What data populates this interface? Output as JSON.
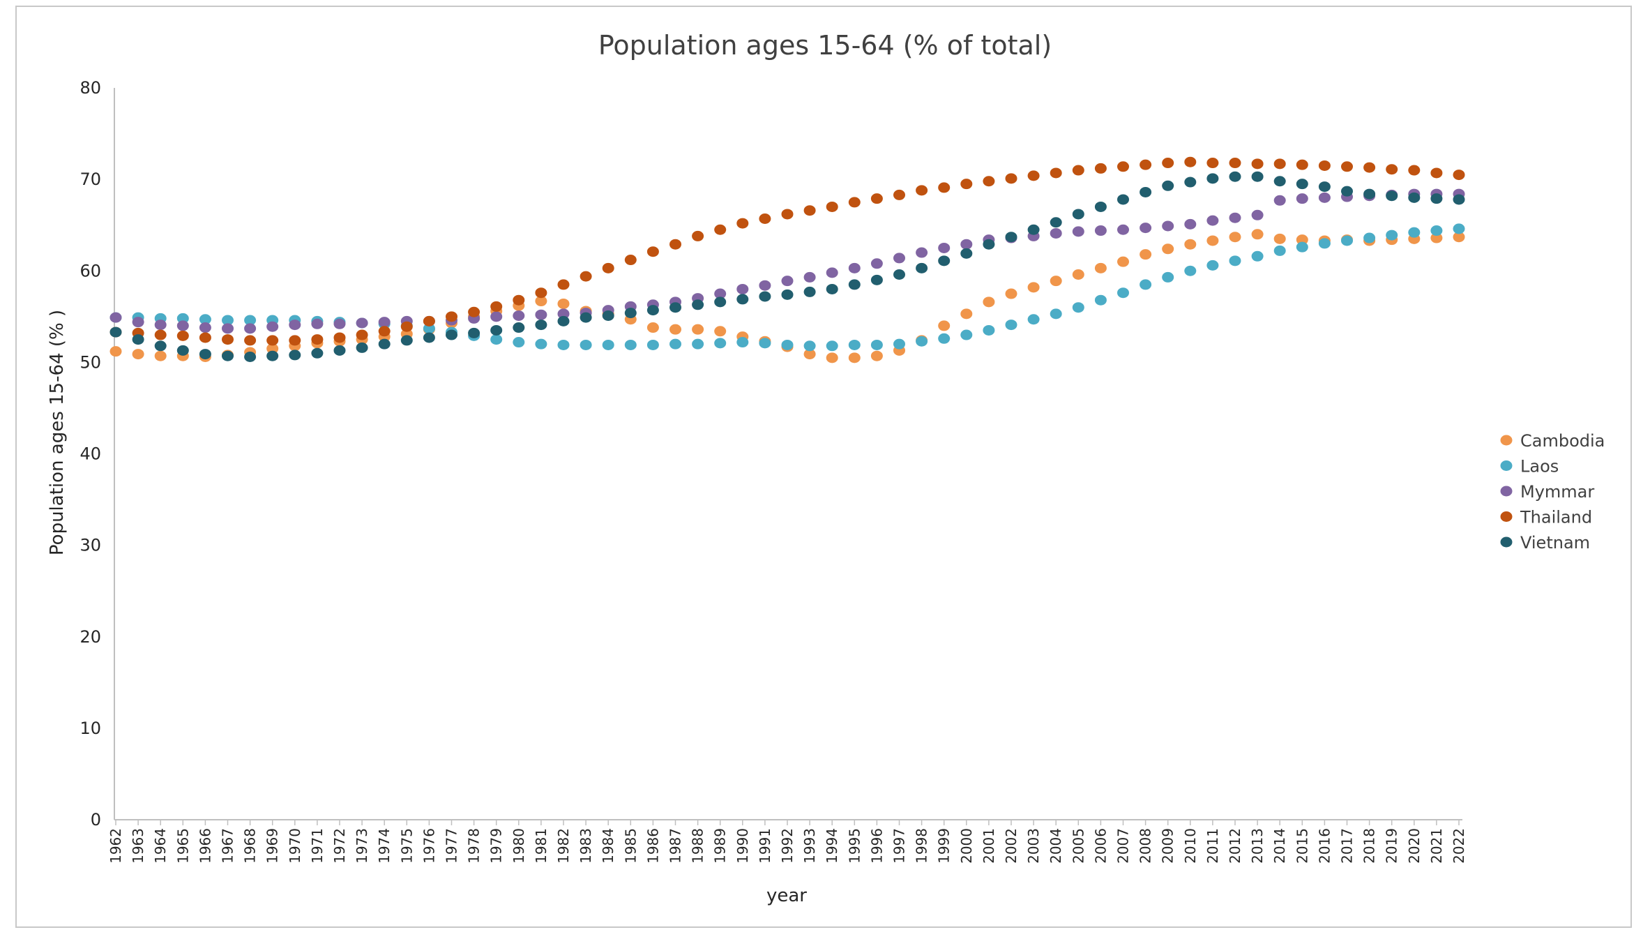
{
  "chart_data": {
    "type": "scatter",
    "title": "Population ages 15-64 (% of total)",
    "xlabel": "year",
    "ylabel": "Population ages 15-64 (% )",
    "ylim": [
      0,
      80
    ],
    "yticks": [
      0,
      10,
      20,
      30,
      40,
      50,
      60,
      70,
      80
    ],
    "grid": false,
    "legend_position": "right",
    "x": [
      1962,
      1963,
      1964,
      1965,
      1966,
      1967,
      1968,
      1969,
      1970,
      1971,
      1972,
      1973,
      1974,
      1975,
      1976,
      1977,
      1978,
      1979,
      1980,
      1981,
      1982,
      1983,
      1984,
      1985,
      1986,
      1987,
      1988,
      1989,
      1990,
      1991,
      1992,
      1993,
      1994,
      1995,
      1996,
      1997,
      1998,
      1999,
      2000,
      2001,
      2002,
      2003,
      2004,
      2005,
      2006,
      2007,
      2008,
      2009,
      2010,
      2011,
      2012,
      2013,
      2014,
      2015,
      2016,
      2017,
      2018,
      2019,
      2020,
      2021,
      2022
    ],
    "series": [
      {
        "name": "Cambodia",
        "color": "#F0954A",
        "values": [
          51.2,
          50.9,
          50.7,
          50.7,
          50.6,
          50.8,
          51.1,
          51.5,
          51.8,
          52.1,
          52.3,
          52.5,
          52.8,
          53.1,
          53.6,
          54.3,
          55.0,
          55.6,
          56.2,
          56.7,
          56.4,
          55.6,
          55.3,
          54.7,
          53.8,
          53.6,
          53.6,
          53.4,
          52.8,
          52.3,
          51.7,
          50.9,
          50.5,
          50.5,
          50.7,
          51.3,
          52.4,
          54.0,
          55.3,
          56.6,
          57.5,
          58.2,
          58.9,
          59.6,
          60.3,
          61.0,
          61.8,
          62.4,
          62.9,
          63.3,
          63.7,
          64.0,
          63.5,
          63.4,
          63.3,
          63.4,
          63.3,
          63.4,
          63.5,
          63.6,
          63.7
        ]
      },
      {
        "name": "Laos",
        "color": "#4BACC6",
        "values": [
          54.9,
          54.9,
          54.8,
          54.8,
          54.7,
          54.6,
          54.6,
          54.6,
          54.6,
          54.5,
          54.4,
          54.3,
          54.2,
          54.0,
          53.7,
          53.3,
          52.9,
          52.5,
          52.2,
          52.0,
          51.9,
          51.9,
          51.9,
          51.9,
          51.9,
          52.0,
          52.0,
          52.1,
          52.2,
          52.1,
          51.9,
          51.8,
          51.8,
          51.9,
          51.9,
          52.0,
          52.3,
          52.6,
          53.0,
          53.5,
          54.1,
          54.7,
          55.3,
          56.0,
          56.8,
          57.6,
          58.5,
          59.3,
          60.0,
          60.6,
          61.1,
          61.6,
          62.2,
          62.6,
          63.0,
          63.3,
          63.6,
          63.9,
          64.2,
          64.4,
          64.6
        ]
      },
      {
        "name": "Mymmar",
        "color": "#8064A2",
        "values": [
          54.9,
          54.4,
          54.1,
          54.0,
          53.8,
          53.7,
          53.7,
          53.9,
          54.1,
          54.2,
          54.2,
          54.3,
          54.4,
          54.5,
          54.5,
          54.6,
          54.8,
          55.0,
          55.1,
          55.2,
          55.3,
          55.4,
          55.7,
          56.1,
          56.3,
          56.6,
          57.0,
          57.5,
          58.0,
          58.4,
          58.9,
          59.3,
          59.8,
          60.3,
          60.8,
          61.4,
          62.0,
          62.5,
          62.9,
          63.4,
          63.6,
          63.8,
          64.1,
          64.3,
          64.4,
          64.5,
          64.7,
          64.9,
          65.1,
          65.5,
          65.8,
          66.1,
          67.7,
          67.9,
          68.0,
          68.1,
          68.2,
          68.3,
          68.4,
          68.4,
          68.4
        ]
      },
      {
        "name": "Thailand",
        "color": "#C0520F",
        "values": [
          53.3,
          53.2,
          53.0,
          52.9,
          52.7,
          52.5,
          52.4,
          52.4,
          52.4,
          52.5,
          52.7,
          53.0,
          53.4,
          53.9,
          54.5,
          55.0,
          55.5,
          56.1,
          56.8,
          57.6,
          58.5,
          59.4,
          60.3,
          61.2,
          62.1,
          62.9,
          63.8,
          64.5,
          65.2,
          65.7,
          66.2,
          66.6,
          67.0,
          67.5,
          67.9,
          68.3,
          68.8,
          69.1,
          69.5,
          69.8,
          70.1,
          70.4,
          70.7,
          71.0,
          71.2,
          71.4,
          71.6,
          71.8,
          71.9,
          71.8,
          71.8,
          71.7,
          71.7,
          71.6,
          71.5,
          71.4,
          71.3,
          71.1,
          71.0,
          70.7,
          70.5
        ]
      },
      {
        "name": "Vietnam",
        "color": "#215E6E",
        "values": [
          53.3,
          52.5,
          51.8,
          51.3,
          50.9,
          50.7,
          50.6,
          50.7,
          50.8,
          51.0,
          51.3,
          51.6,
          52.0,
          52.4,
          52.7,
          53.0,
          53.2,
          53.5,
          53.8,
          54.1,
          54.5,
          54.9,
          55.1,
          55.4,
          55.7,
          56.0,
          56.3,
          56.6,
          56.9,
          57.2,
          57.4,
          57.7,
          58.0,
          58.5,
          59.0,
          59.6,
          60.3,
          61.1,
          61.9,
          62.9,
          63.7,
          64.5,
          65.3,
          66.2,
          67.0,
          67.8,
          68.6,
          69.3,
          69.7,
          70.1,
          70.3,
          70.3,
          69.8,
          69.5,
          69.2,
          68.7,
          68.4,
          68.2,
          68.0,
          67.9,
          67.8
        ]
      }
    ]
  }
}
